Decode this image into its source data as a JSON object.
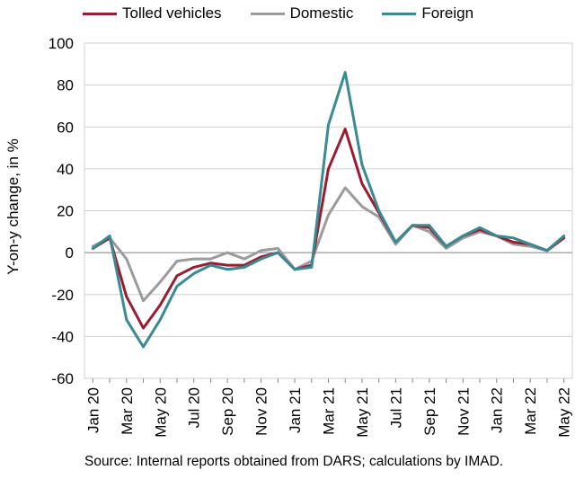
{
  "chart_data": {
    "type": "line",
    "xlabel": "",
    "ylabel": "Y-on-y change, in %",
    "ylim": [
      -60,
      100
    ],
    "yticks": [
      -60,
      -40,
      -20,
      0,
      20,
      40,
      60,
      80,
      100
    ],
    "grid": "horizontal",
    "legend_position": "top",
    "categories": [
      "Jan 20",
      "Feb 20",
      "Mar 20",
      "Apr 20",
      "May 20",
      "Jun 20",
      "Jul 20",
      "Aug 20",
      "Sep 20",
      "Oct 20",
      "Nov 20",
      "Dec 20",
      "Jan 21",
      "Feb 21",
      "Mar 21",
      "Apr 21",
      "May 21",
      "Jun 21",
      "Jul 21",
      "Aug 21",
      "Sep 21",
      "Oct 21",
      "Nov 21",
      "Dec 21",
      "Jan 22",
      "Feb 22",
      "Mar 22",
      "Apr 22",
      "May 22"
    ],
    "tick_labels": [
      "Jan 20",
      "",
      "Mar 20",
      "",
      "May 20",
      "",
      "Jul 20",
      "",
      "Sep 20",
      "",
      "Nov 20",
      "",
      "Jan 21",
      "",
      "Mar 21",
      "",
      "May 21",
      "",
      "Jul 21",
      "",
      "Sep 21",
      "",
      "Nov 21",
      "",
      "Jan 22",
      "",
      "Mar 22",
      "",
      "May 22"
    ],
    "series": [
      {
        "name": "Tolled vehicles",
        "color": "#9b1c31",
        "values": [
          2,
          7,
          -21,
          -36,
          -25,
          -11,
          -7,
          -5,
          -6,
          -6,
          -2,
          0,
          -8,
          -6,
          40,
          59,
          33,
          19,
          5,
          13,
          12,
          3,
          8,
          11,
          8,
          5,
          4,
          1,
          7
        ]
      },
      {
        "name": "Domestic",
        "color": "#9b9b9b",
        "values": [
          3,
          7,
          -3,
          -23,
          -14,
          -4,
          -3,
          -3,
          0,
          -3,
          1,
          2,
          -8,
          -4,
          18,
          31,
          22,
          17,
          4,
          13,
          10,
          2,
          7,
          10,
          8,
          4,
          3,
          1,
          7
        ]
      },
      {
        "name": "Foreign",
        "color": "#3a8a93",
        "values": [
          2,
          8,
          -32,
          -45,
          -32,
          -16,
          -10,
          -6,
          -8,
          -7,
          -3,
          0,
          -8,
          -7,
          61,
          86,
          42,
          20,
          5,
          13,
          13,
          3,
          8,
          12,
          8,
          7,
          4,
          1,
          8
        ]
      }
    ]
  },
  "source_text": "Source: Internal reports obtained from DARS; calculations by IMAD."
}
